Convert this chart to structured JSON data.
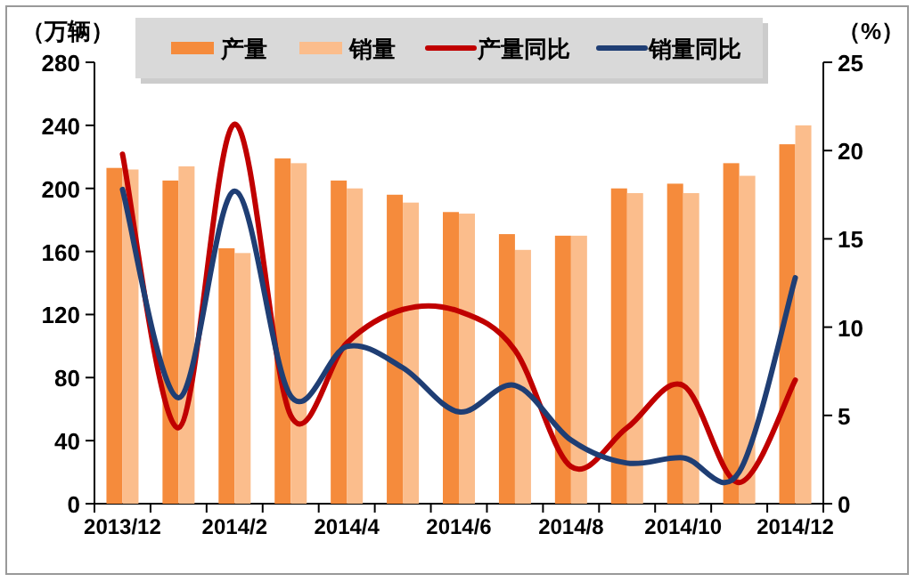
{
  "chart_data": {
    "type": "bar",
    "ylabel": "（万辆）",
    "y2label": "（%）",
    "categories": [
      "2013/12",
      null,
      "2014/2",
      null,
      "2014/4",
      null,
      "2014/6",
      null,
      "2014/8",
      null,
      "2014/10",
      null,
      "2014/12"
    ],
    "series": [
      {
        "name": "产量",
        "color": "#f58b3c",
        "values": [
          213,
          205,
          162,
          219,
          205,
          196,
          185,
          171,
          170,
          200,
          203,
          216,
          228
        ]
      },
      {
        "name": "销量",
        "color": "#fbbd8c",
        "values": [
          212,
          214,
          159,
          216,
          200,
          191,
          184,
          161,
          170,
          197,
          197,
          208,
          240
        ]
      },
      {
        "name": "产量同比",
        "type": "line",
        "axis": "y2",
        "color": "#c00000",
        "values": [
          19.8,
          4.3,
          21.5,
          5.0,
          9.1,
          11.0,
          10.9,
          8.7,
          2.1,
          4.3,
          6.7,
          1.2,
          7.0
        ]
      },
      {
        "name": "销量同比",
        "type": "line",
        "axis": "y2",
        "color": "#1f3e74",
        "values": [
          17.8,
          6.0,
          17.7,
          6.1,
          8.9,
          7.7,
          5.2,
          6.7,
          3.6,
          2.3,
          2.6,
          1.8,
          12.8
        ]
      }
    ],
    "ylim": [
      0,
      280
    ],
    "yticks": [
      0,
      40,
      80,
      120,
      160,
      200,
      240,
      280
    ],
    "y2lim": [
      0,
      25
    ],
    "y2ticks": [
      0,
      5,
      10,
      15,
      20,
      25
    ],
    "legend": "top"
  }
}
